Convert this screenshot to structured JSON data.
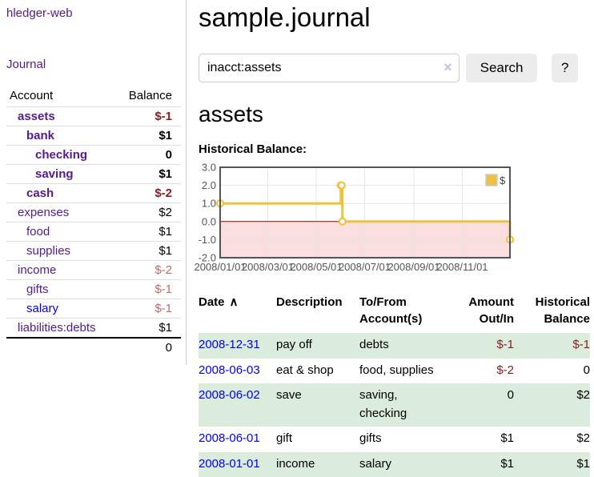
{
  "colors": {
    "link_purple": "#551a8b",
    "link_blue": "#0000ee",
    "negative": "#8b1c1c",
    "negative_soft": "#bd6d6d",
    "row_stripe_green": "#dcecdc",
    "chart_yellow": "#edc240",
    "clear_icon_lavender": "#c9c0de"
  },
  "sidebar": {
    "app_title": "hledger-web",
    "journal_link": "Journal",
    "accounts_table": {
      "header_account": "Account",
      "header_balance": "Balance",
      "rows": [
        {
          "name": "assets",
          "indent": 0,
          "bold": true,
          "balance": "$-1",
          "balance_style": "negative"
        },
        {
          "name": "bank",
          "indent": 1,
          "bold": true,
          "balance": "$1",
          "balance_style": "normal"
        },
        {
          "name": "checking",
          "indent": 2,
          "bold": true,
          "balance": "0",
          "balance_style": "normal"
        },
        {
          "name": "saving",
          "indent": 2,
          "bold": true,
          "balance": "$1",
          "balance_style": "normal"
        },
        {
          "name": "cash",
          "indent": 1,
          "bold": true,
          "balance": "$-2",
          "balance_style": "negative"
        },
        {
          "name": "expenses",
          "indent": 0,
          "bold": false,
          "balance": "$2",
          "balance_style": "normal"
        },
        {
          "name": "food",
          "indent": 1,
          "bold": false,
          "balance": "$1",
          "balance_style": "normal"
        },
        {
          "name": "supplies",
          "indent": 1,
          "bold": false,
          "balance": "$1",
          "balance_style": "normal"
        },
        {
          "name": "income",
          "indent": 0,
          "bold": false,
          "balance": "$-2",
          "balance_style": "negative-soft"
        },
        {
          "name": "gifts",
          "indent": 1,
          "bold": false,
          "balance": "$-1",
          "balance_style": "negative-soft"
        },
        {
          "name": "salary",
          "indent": 1,
          "bold": false,
          "link_style": "blue",
          "balance": "$-1",
          "balance_style": "negative-soft"
        },
        {
          "name": "liabilities:debts",
          "indent": 0,
          "bold": false,
          "balance": "$1",
          "balance_style": "normal"
        }
      ],
      "total": "0"
    }
  },
  "main": {
    "title": "sample.journal",
    "search": {
      "value": "inacct:assets",
      "clear_icon": "×",
      "button_label": "Search",
      "help_label": "?"
    },
    "account_heading": "assets",
    "chart_title": "Historical Balance:",
    "register": {
      "headers": [
        {
          "label": "Date",
          "sort_icon": "∧",
          "align": "left",
          "cls": "date"
        },
        {
          "label": "Description",
          "align": "left",
          "cls": "desc"
        },
        {
          "label": "To/From Account(s)",
          "align": "left",
          "cls": "acct"
        },
        {
          "label": "Amount Out/In",
          "align": "right",
          "cls": "amt"
        },
        {
          "label": "Historical Balance",
          "align": "right",
          "cls": "bal"
        }
      ],
      "rows": [
        {
          "date": "2008-12-31",
          "description": "pay off",
          "accounts": "debts",
          "amount": "$-1",
          "amount_negative": true,
          "balance": "$-1",
          "balance_negative": true
        },
        {
          "date": "2008-06-03",
          "description": "eat & shop",
          "accounts": "food, supplies",
          "amount": "$-2",
          "amount_negative": true,
          "balance": "0",
          "balance_negative": false
        },
        {
          "date": "2008-06-02",
          "description": "save",
          "accounts": "saving, checking",
          "amount": "0",
          "amount_negative": false,
          "balance": "$2",
          "balance_negative": false
        },
        {
          "date": "2008-06-01",
          "description": "gift",
          "accounts": "gifts",
          "amount": "$1",
          "amount_negative": false,
          "balance": "$2",
          "balance_negative": false
        },
        {
          "date": "2008-01-01",
          "description": "income",
          "accounts": "salary",
          "amount": "$1",
          "amount_negative": false,
          "balance": "$1",
          "balance_negative": false
        }
      ]
    }
  },
  "chart_data": {
    "type": "line",
    "title": "Historical Balance:",
    "step": true,
    "x_range": [
      "2008-01-01",
      "2008-12-31"
    ],
    "ylim": [
      -2,
      3
    ],
    "y_ticks": [
      "3.0",
      "2.0",
      "1.0",
      "0.0",
      "-1.0",
      "-2.0"
    ],
    "x_ticks": [
      {
        "date": "2008-01-01",
        "label": "2008/01/01"
      },
      {
        "date": "2008-03-01",
        "label": "2008/03/01"
      },
      {
        "date": "2008-05-01",
        "label": "2008/05/01"
      },
      {
        "date": "2008-07-01",
        "label": "2008/07/01"
      },
      {
        "date": "2008-09-01",
        "label": "2008/09/01"
      },
      {
        "date": "2008-11-01",
        "label": "2008/11/01"
      }
    ],
    "series": [
      {
        "name": "$",
        "color": "#edc240",
        "points": [
          {
            "x": "2008-01-01",
            "y": 1
          },
          {
            "x": "2008-06-01",
            "y": 2
          },
          {
            "x": "2008-06-02",
            "y": 2
          },
          {
            "x": "2008-06-03",
            "y": 0
          },
          {
            "x": "2008-12-31",
            "y": -1
          }
        ]
      }
    ],
    "legend": {
      "position": "ne",
      "labels": [
        "$"
      ]
    },
    "grid": true,
    "grid_color": "#e6e6e6",
    "border_color": "#545454",
    "tick_label_color": "#545454",
    "zero_line_color": "#a40000",
    "negative_region_color": "#fbdfdf"
  }
}
